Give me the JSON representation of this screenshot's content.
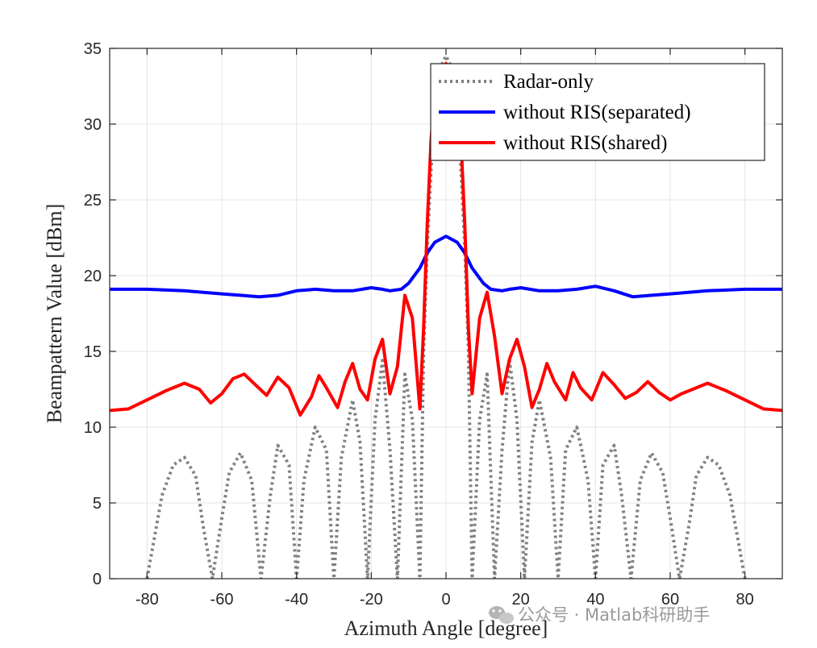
{
  "colors": {
    "radar": "#808080",
    "separated": "#0000ff",
    "shared": "#ff0000",
    "grid": "#e4e4e4",
    "axis": "#262626",
    "watermark": "#9a9a9a"
  },
  "watermark": {
    "icon": "wechat-icon",
    "text": "公众号 · Matlab科研助手"
  },
  "chart_data": {
    "type": "line",
    "title": "",
    "xlabel": "Azimuth Angle [degree]",
    "ylabel": "Beampattern Value [dBm]",
    "xlim": [
      -90,
      90
    ],
    "ylim": [
      0,
      35
    ],
    "xticks": [
      -80,
      -60,
      -40,
      -20,
      0,
      20,
      40,
      60,
      80
    ],
    "yticks": [
      0,
      5,
      10,
      15,
      20,
      25,
      30,
      35
    ],
    "xtick_labels": [
      "-80",
      "-60",
      "-40",
      "-20",
      "0",
      "20",
      "40",
      "60",
      "80"
    ],
    "ytick_labels": [
      "0",
      "5",
      "10",
      "15",
      "20",
      "25",
      "30",
      "35"
    ],
    "grid": true,
    "legend_position": "top-right",
    "series": [
      {
        "name": "Radar-only",
        "style": "dotted",
        "color": "#808080",
        "x": [
          -80,
          -76,
          -73,
          -70,
          -67,
          -65,
          -62.5,
          -60,
          -58,
          -55,
          -52,
          -49.5,
          -47,
          -45,
          -42,
          -40,
          -38,
          -35,
          -32,
          -30,
          -28,
          -25,
          -23,
          -21,
          -19,
          -17,
          -15,
          -13,
          -11,
          -9,
          -7,
          -6,
          -5,
          -4,
          -3,
          -2,
          -1,
          0,
          1,
          2,
          3,
          4,
          5,
          6,
          7,
          9,
          11,
          13,
          15,
          17,
          19,
          21,
          23,
          25,
          28,
          30,
          32,
          35,
          38,
          40,
          42,
          45,
          47,
          49.5,
          52,
          55,
          58,
          60,
          62.5,
          65,
          67,
          70,
          73,
          76,
          80
        ],
        "y": [
          0,
          5.5,
          7.5,
          8.0,
          6.8,
          3.5,
          0,
          4.0,
          7.0,
          8.3,
          6.5,
          0,
          5.5,
          8.8,
          7.5,
          0,
          6.5,
          10.0,
          8.5,
          0,
          8.0,
          11.8,
          9.0,
          0,
          10.5,
          14.4,
          8.5,
          0,
          13.5,
          10.5,
          0,
          15,
          22,
          27,
          31,
          33,
          34,
          34.5,
          34,
          33,
          31,
          27,
          22,
          15,
          0,
          10.5,
          13.5,
          0,
          8.5,
          14.4,
          10.5,
          0,
          9.0,
          11.8,
          8.0,
          0,
          8.5,
          10.0,
          6.5,
          0,
          7.5,
          8.8,
          5.5,
          0,
          6.5,
          8.3,
          7.0,
          4.0,
          0,
          3.5,
          6.8,
          8.0,
          7.5,
          5.5,
          0
        ]
      },
      {
        "name": "without RIS(separated)",
        "style": "solid",
        "color": "#0000ff",
        "x": [
          -90,
          -80,
          -70,
          -60,
          -55,
          -50,
          -45,
          -40,
          -35,
          -30,
          -25,
          -20,
          -17,
          -15,
          -12,
          -10,
          -7,
          -5,
          -3,
          0,
          3,
          5,
          7,
          10,
          12,
          15,
          17,
          20,
          25,
          30,
          35,
          40,
          45,
          50,
          55,
          60,
          70,
          80,
          90
        ],
        "y": [
          19.1,
          19.1,
          19.0,
          18.8,
          18.7,
          18.6,
          18.7,
          19.0,
          19.1,
          19.0,
          19.0,
          19.2,
          19.1,
          19.0,
          19.1,
          19.5,
          20.5,
          21.5,
          22.2,
          22.6,
          22.2,
          21.5,
          20.5,
          19.5,
          19.1,
          19.0,
          19.1,
          19.2,
          19.0,
          19.0,
          19.1,
          19.3,
          19.0,
          18.6,
          18.7,
          18.8,
          19.0,
          19.1,
          19.1
        ]
      },
      {
        "name": "without RIS(shared)",
        "style": "solid",
        "color": "#ff0000",
        "x": [
          -90,
          -85,
          -80,
          -75,
          -70,
          -66,
          -63,
          -60,
          -57,
          -54,
          -51,
          -48,
          -45,
          -42,
          -39,
          -36,
          -34,
          -32,
          -29,
          -27,
          -25,
          -23,
          -21,
          -19,
          -17,
          -15,
          -13,
          -11,
          -9,
          -7,
          -6,
          -5,
          -4,
          -3,
          -2,
          0,
          2,
          3,
          4,
          5,
          6,
          7,
          9,
          11,
          13,
          15,
          17,
          19,
          21,
          23,
          25,
          27,
          29,
          32,
          34,
          36,
          39,
          42,
          45,
          48,
          51,
          54,
          57,
          60,
          63,
          66,
          70,
          75,
          80,
          85,
          90
        ],
        "y": [
          11.1,
          11.2,
          11.8,
          12.4,
          12.9,
          12.5,
          11.6,
          12.2,
          13.2,
          13.5,
          12.8,
          12.1,
          13.3,
          12.6,
          10.8,
          12.0,
          13.4,
          12.6,
          11.3,
          13.0,
          14.2,
          12.5,
          11.8,
          14.5,
          15.8,
          12.2,
          14.0,
          18.7,
          17.2,
          11.2,
          16.5,
          23.5,
          29,
          32,
          33.5,
          34.0,
          33.5,
          32,
          29,
          23.5,
          16.5,
          12.2,
          17.2,
          18.9,
          16.0,
          12.2,
          14.5,
          15.8,
          14.0,
          11.3,
          12.5,
          14.2,
          13.0,
          11.8,
          13.6,
          12.6,
          11.8,
          13.6,
          12.8,
          11.9,
          12.3,
          13.0,
          12.3,
          11.8,
          12.2,
          12.5,
          12.9,
          12.4,
          11.8,
          11.2,
          11.1
        ]
      }
    ]
  }
}
